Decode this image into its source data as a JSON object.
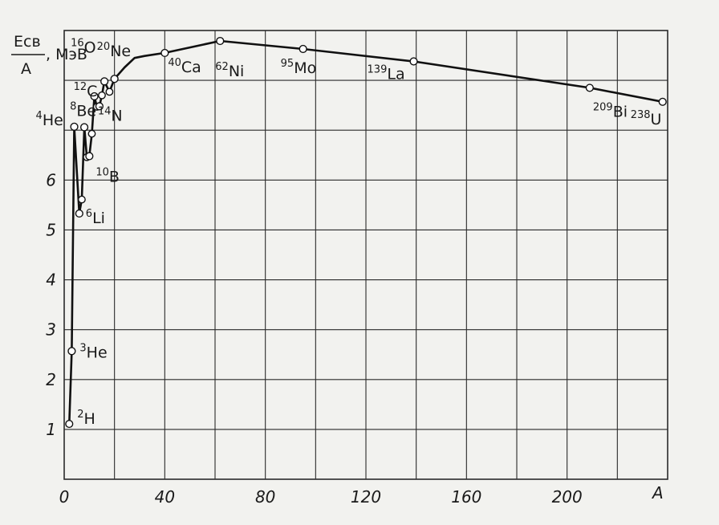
{
  "chart_data": {
    "type": "line",
    "xlabel": "A",
    "ylabel": {
      "numerator": "Eсв",
      "denominator": "A",
      "unit": ", МэВ"
    },
    "xlim": [
      0,
      240
    ],
    "ylim": [
      0,
      9
    ],
    "x_ticks": [
      0,
      40,
      80,
      120,
      160,
      200
    ],
    "x_tick_labels": [
      "0",
      "40",
      "80",
      "120",
      "160",
      "200"
    ],
    "y_ticks": [
      1,
      2,
      3,
      4,
      5,
      6
    ],
    "y_tick_labels": [
      "1",
      "2",
      "3",
      "4",
      "5",
      "6"
    ],
    "grid": true,
    "series": [
      {
        "x": [
          2,
          3,
          4,
          6,
          7,
          8,
          9,
          10,
          11,
          12,
          13,
          14,
          15,
          16,
          18,
          20,
          24,
          28,
          32,
          40,
          62,
          95,
          139,
          209,
          238
        ],
        "y": [
          1.11,
          2.57,
          7.07,
          5.33,
          5.61,
          7.06,
          6.46,
          6.48,
          6.93,
          7.68,
          7.47,
          7.48,
          7.7,
          7.98,
          7.77,
          8.03,
          8.26,
          8.45,
          8.49,
          8.55,
          8.79,
          8.63,
          8.38,
          7.85,
          7.57
        ]
      }
    ],
    "isotopes": [
      {
        "mass": "2",
        "symbol": "H",
        "x": 2,
        "y": 1.11
      },
      {
        "mass": "3",
        "symbol": "He",
        "x": 3,
        "y": 2.57
      },
      {
        "mass": "4",
        "symbol": "He",
        "x": 4,
        "y": 7.07
      },
      {
        "mass": "6",
        "symbol": "Li",
        "x": 6,
        "y": 5.33
      },
      {
        "mass": "8",
        "symbol": "Be",
        "x": 8,
        "y": 7.06
      },
      {
        "mass": "10",
        "symbol": "B",
        "x": 10,
        "y": 6.48
      },
      {
        "mass": "12",
        "symbol": "C",
        "x": 12,
        "y": 7.68
      },
      {
        "mass": "14",
        "symbol": "N",
        "x": 14,
        "y": 7.48
      },
      {
        "mass": "16",
        "symbol": "O",
        "x": 16,
        "y": 7.98
      },
      {
        "mass": "20",
        "symbol": "Ne",
        "x": 20,
        "y": 8.03
      },
      {
        "mass": "40",
        "symbol": "Ca",
        "x": 40,
        "y": 8.55
      },
      {
        "mass": "62",
        "symbol": "Ni",
        "x": 62,
        "y": 8.79
      },
      {
        "mass": "95",
        "symbol": "Mo",
        "x": 95,
        "y": 8.63
      },
      {
        "mass": "139",
        "symbol": "La",
        "x": 139,
        "y": 8.38
      },
      {
        "mass": "209",
        "symbol": "Bi",
        "x": 209,
        "y": 7.85
      },
      {
        "mass": "238",
        "symbol": "U",
        "x": 238,
        "y": 7.57
      }
    ],
    "extra_points": [
      {
        "x": 7,
        "y": 5.61
      },
      {
        "x": 9,
        "y": 6.46
      },
      {
        "x": 11,
        "y": 6.93
      },
      {
        "x": 13,
        "y": 7.47
      },
      {
        "x": 15,
        "y": 7.7
      },
      {
        "x": 18,
        "y": 7.77
      }
    ],
    "colors": {
      "line": "#111111",
      "grid": "#2a2a2a",
      "marker_fill": "#ffffff",
      "background": "#f2f2ef"
    }
  }
}
